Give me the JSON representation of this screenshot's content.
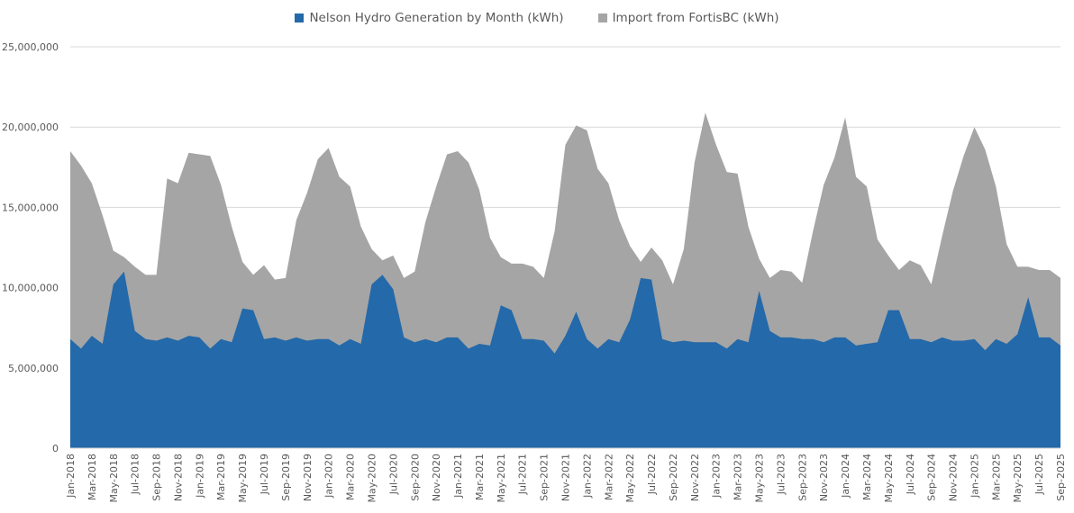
{
  "chart_data": {
    "type": "area",
    "stacked": true,
    "title": "",
    "xlabel": "",
    "ylabel": "",
    "ylim": [
      0,
      25000000
    ],
    "yticks": [
      0,
      5000000,
      10000000,
      15000000,
      20000000,
      25000000
    ],
    "ytick_labels": [
      "0",
      "5,000,000",
      "10,000,000",
      "15,000,000",
      "20,000,000",
      "25,000,000"
    ],
    "grid": "horizontal",
    "legend_position": "top",
    "categories": [
      "Jan-2018",
      "Feb-2018",
      "Mar-2018",
      "Apr-2018",
      "May-2018",
      "Jun-2018",
      "Jul-2018",
      "Aug-2018",
      "Sep-2018",
      "Oct-2018",
      "Nov-2018",
      "Dec-2018",
      "Jan-2019",
      "Feb-2019",
      "Mar-2019",
      "Apr-2019",
      "May-2019",
      "Jun-2019",
      "Jul-2019",
      "Aug-2019",
      "Sep-2019",
      "Oct-2019",
      "Nov-2019",
      "Dec-2019",
      "Jan-2020",
      "Feb-2020",
      "Mar-2020",
      "Apr-2020",
      "May-2020",
      "Jun-2020",
      "Jul-2020",
      "Aug-2020",
      "Sep-2020",
      "Oct-2020",
      "Nov-2020",
      "Dec-2020",
      "Jan-2021",
      "Feb-2021",
      "Mar-2021",
      "Apr-2021",
      "May-2021",
      "Jun-2021",
      "Jul-2021",
      "Aug-2021",
      "Sep-2021",
      "Oct-2021",
      "Nov-2021",
      "Dec-2021",
      "Jan-2022",
      "Feb-2022",
      "Mar-2022",
      "Apr-2022",
      "May-2022",
      "Jun-2022",
      "Jul-2022",
      "Aug-2022",
      "Sep-2022",
      "Oct-2022",
      "Nov-2022",
      "Dec-2022",
      "Jan-2023",
      "Feb-2023",
      "Mar-2023",
      "Apr-2023",
      "May-2023",
      "Jun-2023",
      "Jul-2023",
      "Aug-2023",
      "Sep-2023",
      "Oct-2023",
      "Nov-2023",
      "Dec-2023",
      "Jan-2024",
      "Feb-2024",
      "Mar-2024",
      "Apr-2024",
      "May-2024",
      "Jun-2024",
      "Jul-2024",
      "Aug-2024",
      "Sep-2024",
      "Oct-2024",
      "Nov-2024",
      "Dec-2024",
      "Jan-2025",
      "Feb-2025",
      "Mar-2025",
      "Apr-2025",
      "May-2025",
      "Jun-2025",
      "Jul-2025",
      "Aug-2025",
      "Sep-2025"
    ],
    "series": [
      {
        "name": "Nelson Hydro Generation by Month (kWh)",
        "color": "#2469a9",
        "values": [
          6800000,
          6200000,
          7000000,
          6500000,
          10200000,
          11000000,
          7300000,
          6800000,
          6700000,
          6900000,
          6700000,
          7000000,
          6900000,
          6200000,
          6800000,
          6600000,
          8700000,
          8600000,
          6800000,
          6900000,
          6700000,
          6900000,
          6700000,
          6800000,
          6800000,
          6400000,
          6800000,
          6500000,
          10200000,
          10800000,
          9900000,
          6900000,
          6600000,
          6800000,
          6600000,
          6900000,
          6900000,
          6200000,
          6500000,
          6400000,
          8900000,
          8600000,
          6800000,
          6800000,
          6700000,
          5900000,
          7000000,
          8500000,
          6800000,
          6200000,
          6800000,
          6600000,
          8000000,
          10600000,
          10500000,
          6800000,
          6600000,
          6700000,
          6600000,
          6600000,
          6600000,
          6200000,
          6800000,
          6600000,
          9800000,
          7300000,
          6900000,
          6900000,
          6800000,
          6800000,
          6600000,
          6900000,
          6900000,
          6400000,
          6500000,
          6600000,
          8600000,
          8600000,
          6800000,
          6800000,
          6600000,
          6900000,
          6700000,
          6700000,
          6800000,
          6100000,
          6800000,
          6500000,
          7100000,
          9400000,
          6900000,
          6900000,
          6400000
        ]
      },
      {
        "name": "Import from FortisBC (kWh)",
        "color": "#a5a5a5",
        "values": [
          11700000,
          11400000,
          9500000,
          8000000,
          2100000,
          900000,
          4000000,
          4000000,
          4100000,
          9900000,
          9800000,
          11400000,
          11400000,
          12000000,
          9600000,
          7200000,
          2900000,
          2200000,
          4600000,
          3600000,
          3900000,
          7300000,
          9200000,
          11200000,
          11900000,
          10500000,
          9500000,
          7300000,
          2200000,
          900000,
          2100000,
          3700000,
          4400000,
          7300000,
          9700000,
          11400000,
          11600000,
          11600000,
          9600000,
          6700000,
          3000000,
          2900000,
          4700000,
          4500000,
          3900000,
          7600000,
          11900000,
          11600000,
          13000000,
          11200000,
          9700000,
          7600000,
          4600000,
          1000000,
          2000000,
          4900000,
          3600000,
          5700000,
          11200000,
          14300000,
          12300000,
          11000000,
          10300000,
          7200000,
          2000000,
          3300000,
          4200000,
          4100000,
          3500000,
          6700000,
          9800000,
          11200000,
          13700000,
          10500000,
          9800000,
          6400000,
          3400000,
          2500000,
          4900000,
          4600000,
          3600000,
          6300000,
          9300000,
          11500000,
          13200000,
          12500000,
          9500000,
          6200000,
          4200000,
          1900000,
          4200000,
          4200000,
          4200000
        ]
      }
    ]
  }
}
